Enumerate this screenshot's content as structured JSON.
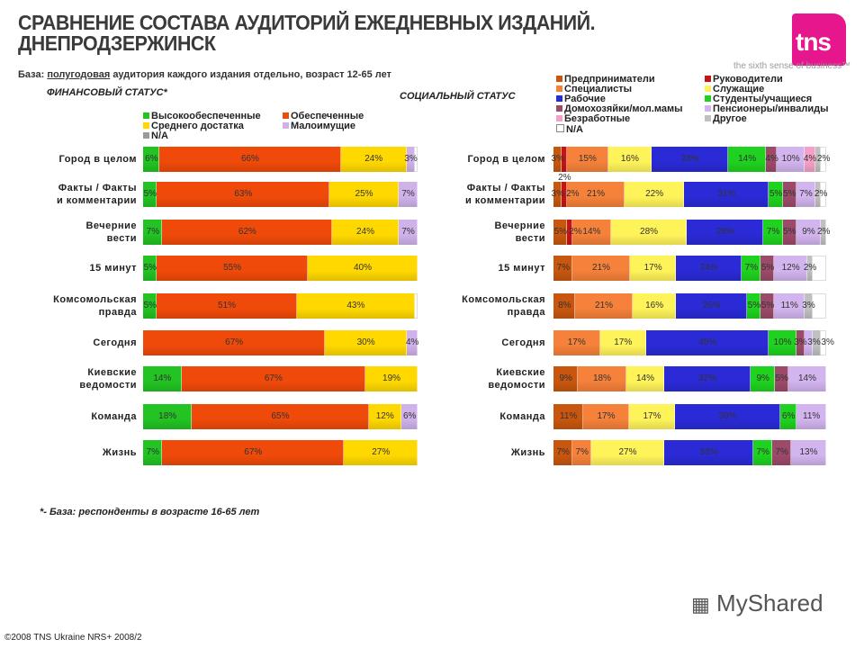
{
  "header": {
    "title_line1": "СРАВНЕНИЕ СОСТАВА АУДИТОРИЙ ЕЖЕДНЕВНЫХ ИЗДАНИЙ.",
    "title_line2": "ДНЕПРОДЗЕРЖИНСК",
    "logo_text": "tns",
    "tagline": "the sixth sense of business™",
    "base_prefix": "База:",
    "base_underlined": "полугодовая",
    "base_suffix": "аудитория каждого издания отдельно, возраст 12-65 лет"
  },
  "footer": {
    "footnote": "*- База: респонденты в возрасте 16-65 лет",
    "copyright": "©2008 TNS Ukraine NRS+ 2008/2",
    "watermark": "MyShared"
  },
  "chart_data": [
    {
      "type": "bar",
      "orientation": "horizontal",
      "stacked": true,
      "title": "ФИНАНСОВЫЙ СТАТУС*",
      "unit": "%",
      "xlim": [
        0,
        100
      ],
      "legend_position": "top",
      "categories": [
        "Город в целом",
        "Факты / Факты и комментарии",
        "Вечерние вести",
        "15 минут",
        "Комсомольская правда",
        "Сегодня",
        "Киевские ведомости",
        "Команда",
        "Жизнь"
      ],
      "category_lines": [
        [
          "Город в целом"
        ],
        [
          "Факты / Факты",
          "и комментарии"
        ],
        [
          "Вечерние",
          "вести"
        ],
        [
          "15 минут"
        ],
        [
          "Комсомольская",
          "правда"
        ],
        [
          "Сегодня"
        ],
        [
          "Киевские",
          "ведомости"
        ],
        [
          "Команда"
        ],
        [
          "Жизнь"
        ]
      ],
      "series": [
        {
          "name": "Высокообеспеченные",
          "color": "#22c322",
          "values": [
            6,
            5,
            7,
            5,
            5,
            null,
            14,
            18,
            7
          ]
        },
        {
          "name": "Обеспеченные",
          "color": "#f04a0a",
          "values": [
            66,
            63,
            62,
            55,
            51,
            67,
            67,
            65,
            67
          ]
        },
        {
          "name": "Среднего достатка",
          "color": "#ffd800",
          "values": [
            24,
            25,
            24,
            40,
            43,
            30,
            19,
            12,
            27
          ]
        },
        {
          "name": "Малоимущие",
          "color": "#cfb2ea",
          "values": [
            3,
            7,
            7,
            null,
            null,
            4,
            null,
            6,
            null
          ]
        },
        {
          "name": "N/A",
          "color": "#9a9a9a",
          "values": [
            null,
            null,
            null,
            null,
            null,
            null,
            null,
            null,
            null
          ]
        }
      ]
    },
    {
      "type": "bar",
      "orientation": "horizontal",
      "stacked": true,
      "title": "СОЦИАЛЬНЫЙ СТАТУС",
      "unit": "%",
      "xlim": [
        0,
        100
      ],
      "legend_position": "top",
      "categories": [
        "Город в целом",
        "Факты / Факты и комментарии",
        "Вечерние вести",
        "15 минут",
        "Комсомольская правда",
        "Сегодня",
        "Киевские ведомости",
        "Команда",
        "Жизнь"
      ],
      "category_lines": [
        [
          "Город в целом"
        ],
        [
          "Факты / Факты",
          "и комментарии"
        ],
        [
          "Вечерние",
          "вести"
        ],
        [
          "15 минут"
        ],
        [
          "Комсомольская",
          "правда"
        ],
        [
          "Сегодня"
        ],
        [
          "Киевские",
          "ведомости"
        ],
        [
          "Команда"
        ],
        [
          "Жизнь"
        ]
      ],
      "series": [
        {
          "name": "Предприниматели",
          "color": "#c8560e",
          "values": [
            3,
            3,
            5,
            7,
            8,
            null,
            9,
            11,
            7
          ]
        },
        {
          "name": "Руководители",
          "color": "#c41414",
          "values": [
            2,
            2,
            2,
            null,
            null,
            null,
            null,
            null,
            null
          ]
        },
        {
          "name": "Специалисты",
          "color": "#f5813a",
          "values": [
            15,
            21,
            14,
            21,
            21,
            17,
            18,
            17,
            7
          ]
        },
        {
          "name": "Служащие",
          "color": "#fff35a",
          "values": [
            16,
            22,
            28,
            17,
            16,
            17,
            14,
            17,
            27
          ]
        },
        {
          "name": "Рабочие",
          "color": "#2a2ad6",
          "values": [
            28,
            31,
            28,
            24,
            26,
            45,
            32,
            39,
            33
          ]
        },
        {
          "name": "Студенты/учащиеся",
          "color": "#1fd21f",
          "values": [
            14,
            5,
            7,
            7,
            5,
            10,
            9,
            6,
            7
          ]
        },
        {
          "name": "Домохозяйки/мол.мамы",
          "color": "#9c4a6a",
          "values": [
            4,
            5,
            5,
            5,
            5,
            3,
            5,
            null,
            7
          ]
        },
        {
          "name": "Пенсионеры/инвалиды",
          "color": "#d2b4ee",
          "values": [
            10,
            7,
            9,
            12,
            11,
            3,
            14,
            11,
            13
          ]
        },
        {
          "name": "Безработные",
          "color": "#f5a0c8",
          "values": [
            4,
            null,
            null,
            null,
            null,
            null,
            null,
            null,
            null
          ]
        },
        {
          "name": "Другое",
          "color": "#c0c0c0",
          "values": [
            2,
            2,
            2,
            2,
            3,
            3,
            null,
            null,
            null
          ]
        },
        {
          "name": "N/A",
          "color": "#ffffff",
          "values": [
            null,
            null,
            null,
            null,
            null,
            null,
            null,
            null,
            null
          ]
        }
      ]
    }
  ]
}
